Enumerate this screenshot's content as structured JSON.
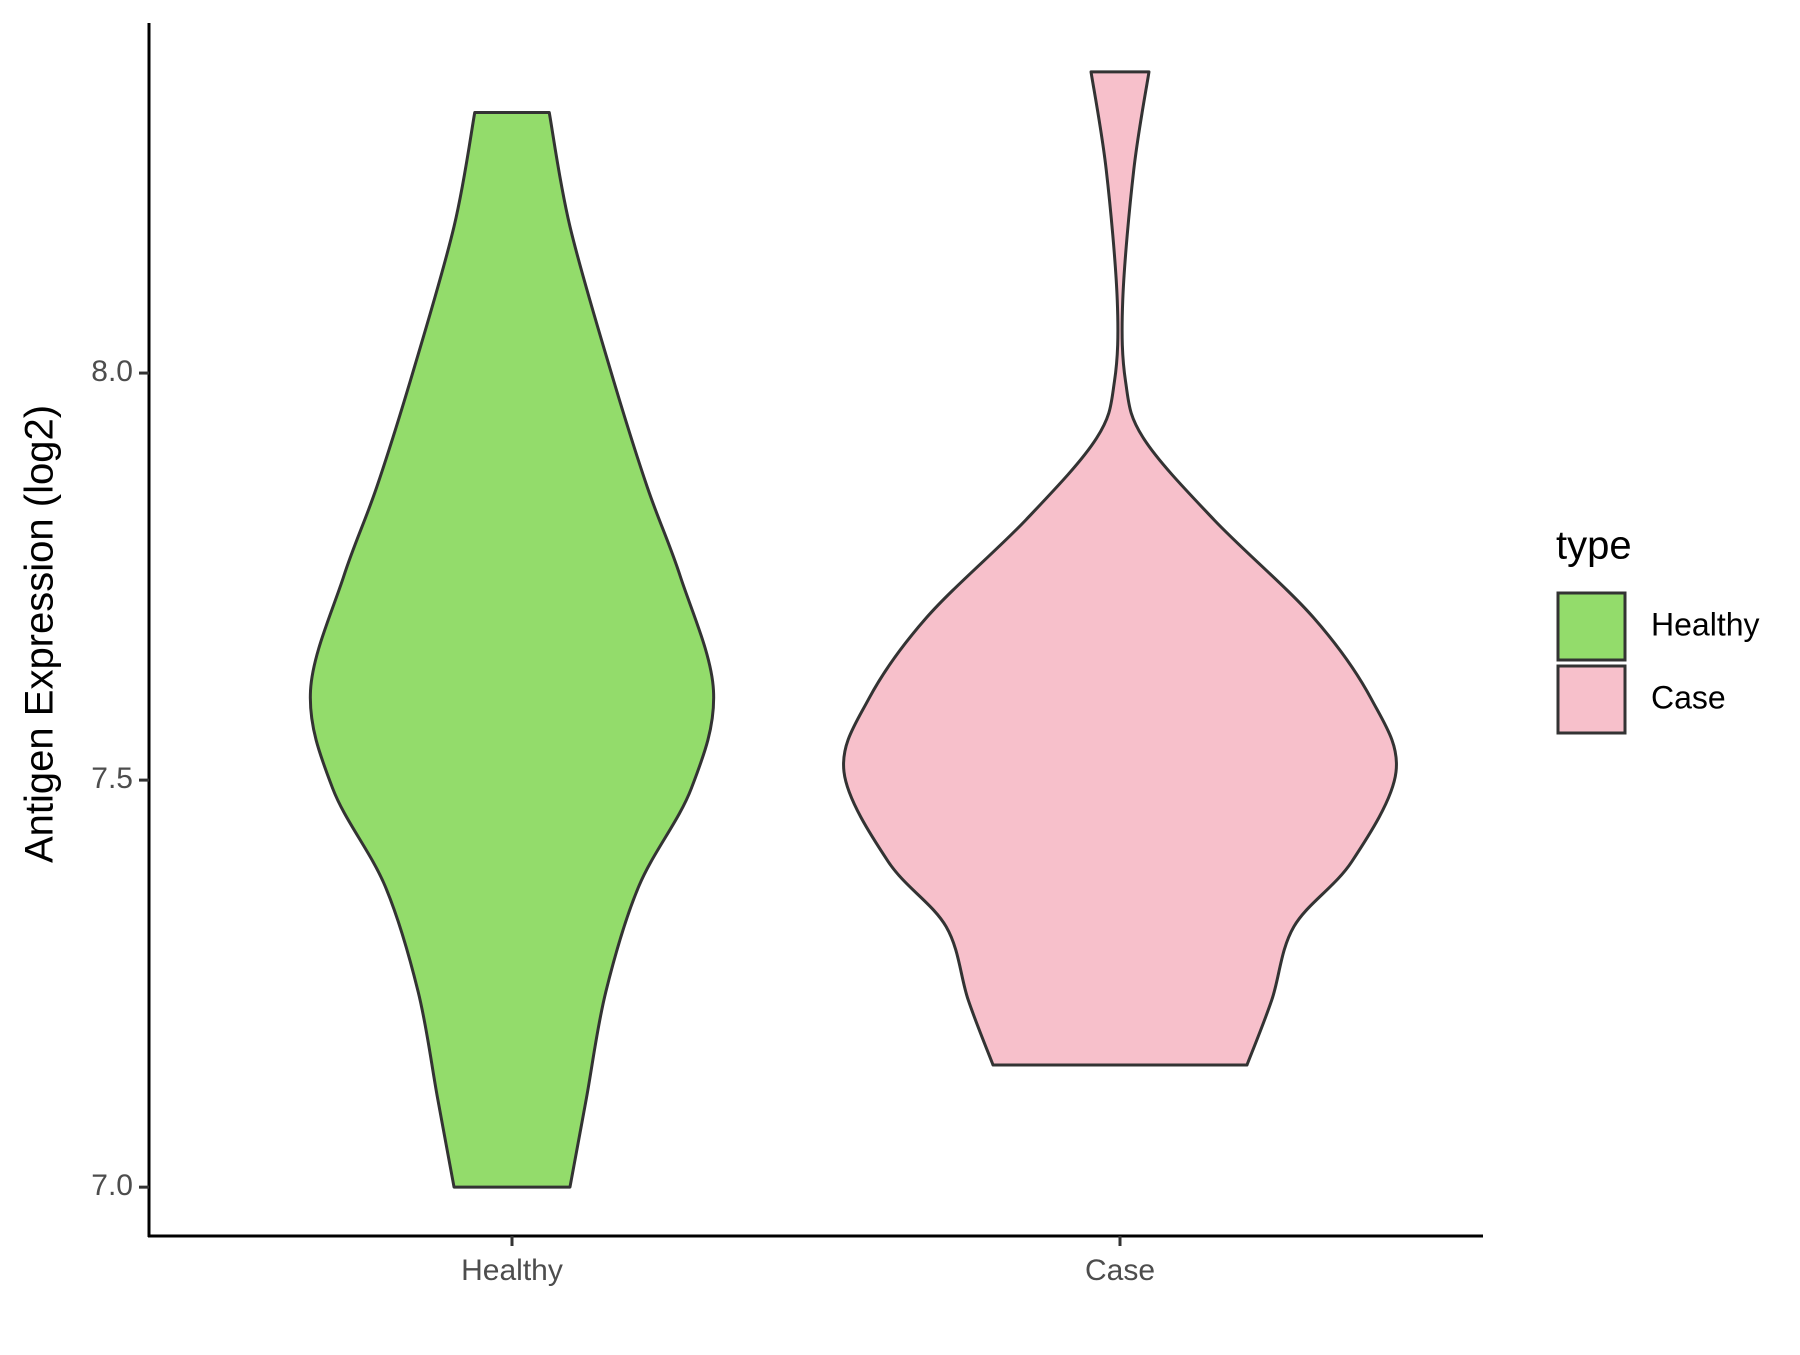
{
  "chart_data": {
    "type": "violin",
    "y_label": "Antigen Expression (log2)",
    "categories": [
      "Healthy",
      "Case"
    ],
    "legend_title": "type",
    "legend": "right",
    "ylim": [
      6.94,
      8.43
    ],
    "yticks": [
      {
        "value": 7,
        "label": "7.0"
      },
      7.5,
      {
        "value": 8,
        "label": "8.0"
      }
    ],
    "series": [
      {
        "name": "Healthy",
        "color": "#93dc6b",
        "y": [
          8.32,
          8.18,
          8.0,
          7.86,
          7.75,
          7.61,
          7.49,
          7.37,
          7.24,
          7.11,
          7.0
        ],
        "width": [
          0.135,
          0.21,
          0.36,
          0.49,
          0.61,
          0.73,
          0.65,
          0.46,
          0.34,
          0.27,
          0.21
        ]
      },
      {
        "name": "Case",
        "color": "#f7c0cb",
        "y": [
          8.37,
          8.25,
          8.09,
          7.99,
          7.92,
          7.82,
          7.7,
          7.6,
          7.51,
          7.4,
          7.32,
          7.23,
          7.15
        ],
        "width": [
          0.105,
          0.05,
          0.01,
          0.02,
          0.085,
          0.34,
          0.7,
          0.91,
          1.0,
          0.84,
          0.63,
          0.55,
          0.46
        ]
      }
    ]
  }
}
